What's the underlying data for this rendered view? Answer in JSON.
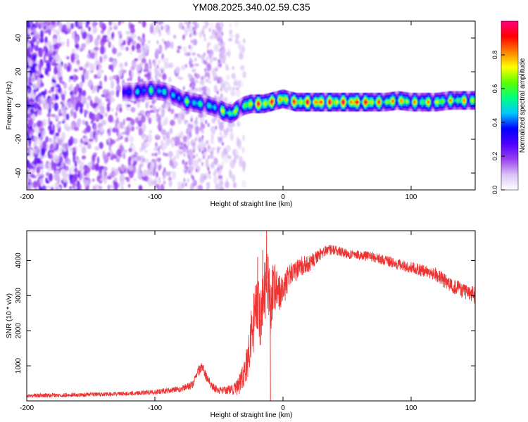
{
  "title": "YM08.2025.340.02.59.C35",
  "chart_data": [
    {
      "type": "heatmap",
      "name": "spectrogram",
      "xlabel": "Height of straight line (km)",
      "ylabel": "Frequency (Hz)",
      "xlim": [
        -200,
        150
      ],
      "ylim": [
        -50,
        50
      ],
      "xticks": [
        -200,
        -100,
        0,
        100
      ],
      "yticks": [
        -40,
        -20,
        0,
        20,
        40
      ],
      "colorbar": {
        "label": "Normalized spectral amplitude",
        "range": [
          0,
          1
        ],
        "ticks": [
          0.0,
          0.2,
          0.4,
          0.6,
          0.8
        ],
        "colors": [
          "#ffffff",
          "#d9c2f5",
          "#9a3ff0",
          "#4d00ff",
          "#0000ff",
          "#00c8ff",
          "#00ff80",
          "#5cff00",
          "#ffff00",
          "#ff8000",
          "#ff0000",
          "#ff0080"
        ]
      },
      "ridge": {
        "x": [
          -125,
          -115,
          -108,
          -100,
          -92,
          -85,
          -78,
          -72,
          -65,
          -58,
          -50,
          -45,
          -40,
          -35,
          -30,
          -25,
          -20,
          -15,
          -10,
          -5,
          0,
          5,
          10,
          20,
          30,
          40,
          50,
          60,
          70,
          80,
          90,
          100,
          110,
          120,
          130,
          140,
          150
        ],
        "y": [
          8,
          8,
          9,
          9,
          8,
          6,
          3,
          2,
          1,
          0,
          -2,
          -4,
          -5,
          -2,
          0,
          1,
          1,
          1,
          2,
          3,
          4,
          3,
          2,
          2,
          2,
          2,
          2,
          2,
          2,
          2,
          3,
          2,
          2,
          2,
          3,
          3,
          3
        ],
        "amplitude": [
          0.35,
          0.45,
          0.5,
          0.55,
          0.5,
          0.45,
          0.55,
          0.6,
          0.55,
          0.5,
          0.55,
          0.7,
          0.7,
          0.6,
          0.6,
          0.8,
          0.85,
          0.9,
          0.85,
          0.85,
          0.75,
          0.8,
          0.85,
          0.9,
          0.9,
          0.9,
          0.9,
          0.9,
          0.85,
          0.75,
          0.8,
          0.7,
          0.75,
          0.7,
          0.7,
          0.75,
          0.7
        ]
      },
      "noise_region": {
        "x_range": [
          -200,
          -45
        ],
        "amplitude_range": [
          0.05,
          0.3
        ]
      }
    },
    {
      "type": "line",
      "name": "snr",
      "xlabel": "Height of straight line (km)",
      "ylabel": "SNR (10 * v/v)",
      "xlim": [
        -200,
        150
      ],
      "ylim": [
        0,
        4850
      ],
      "xticks": [
        -200,
        -100,
        0,
        100
      ],
      "yticks": [
        1000,
        2000,
        3000,
        4000
      ],
      "color": "#ee3333",
      "series": [
        {
          "name": "SNR",
          "x": [
            -200,
            -180,
            -160,
            -140,
            -120,
            -100,
            -90,
            -80,
            -70,
            -67,
            -63,
            -60,
            -55,
            -50,
            -45,
            -40,
            -35,
            -30,
            -27,
            -25,
            -22,
            -20,
            -18,
            -15,
            -12,
            -10,
            -8,
            -5,
            -2,
            0,
            5,
            10,
            15,
            20,
            25,
            30,
            35,
            40,
            45,
            50,
            60,
            70,
            80,
            90,
            100,
            110,
            120,
            130,
            140,
            150
          ],
          "y": [
            150,
            160,
            175,
            190,
            210,
            250,
            290,
            340,
            480,
            800,
            1000,
            700,
            400,
            300,
            300,
            320,
            400,
            800,
            1300,
            1800,
            2400,
            2700,
            2300,
            3000,
            3400,
            2500,
            3100,
            3300,
            3000,
            3100,
            3600,
            3700,
            3850,
            3900,
            4050,
            4200,
            4300,
            4300,
            4250,
            4200,
            4150,
            4100,
            4000,
            3900,
            3800,
            3700,
            3600,
            3300,
            3150,
            3000
          ],
          "noise_amplitude": [
            60,
            60,
            60,
            60,
            60,
            70,
            80,
            90,
            120,
            150,
            150,
            140,
            120,
            100,
            110,
            150,
            250,
            400,
            600,
            800,
            900,
            1000,
            1000,
            900,
            900,
            1000,
            800,
            600,
            500,
            450,
            350,
            300,
            280,
            250,
            200,
            180,
            150,
            140,
            140,
            140,
            140,
            150,
            150,
            160,
            170,
            180,
            200,
            220,
            240,
            250
          ],
          "spikes": [
            {
              "x": -13,
              "y": 4850
            },
            {
              "x": -10,
              "y": 0
            },
            {
              "x": -16,
              "y": 4300
            },
            {
              "x": -20,
              "y": 4100
            }
          ]
        }
      ]
    }
  ]
}
